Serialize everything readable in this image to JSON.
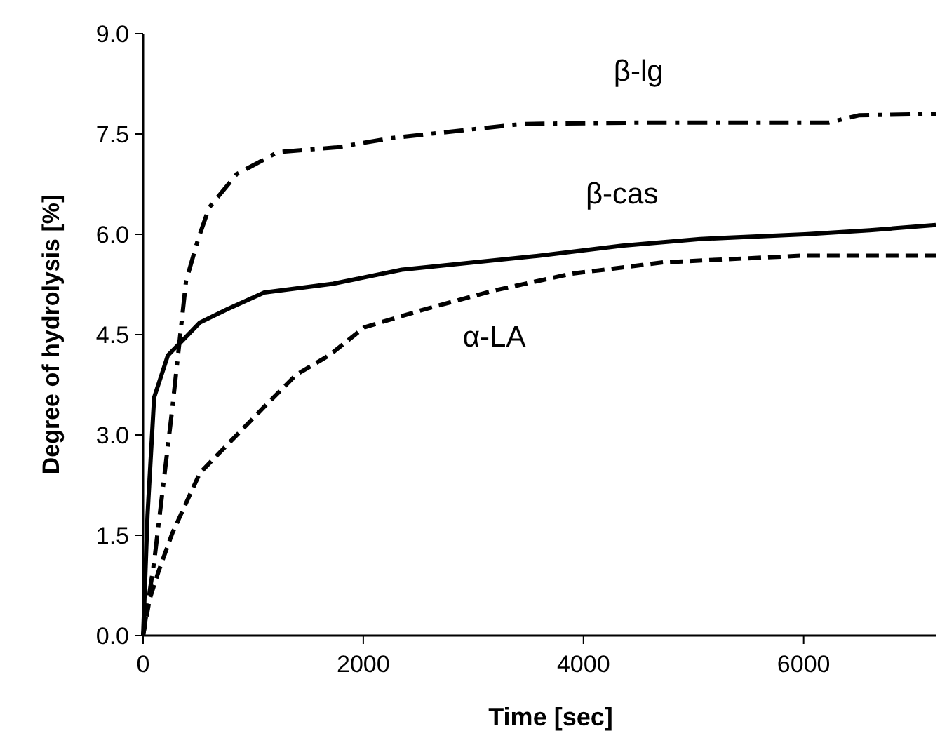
{
  "chart_data": {
    "type": "line",
    "xlabel": "Time [sec]",
    "ylabel": "Degree of hydrolysis [%]",
    "xlim": [
      0,
      7200
    ],
    "xticks": [
      0,
      2000,
      4000,
      6000
    ],
    "ylim": [
      0,
      9
    ],
    "yticks": [
      {
        "value": 0,
        "label": "0.0"
      },
      {
        "value": 1.5,
        "label": "1.5"
      },
      {
        "value": 3,
        "label": "3.0"
      },
      {
        "value": 4.5,
        "label": "4.5"
      },
      {
        "value": 6,
        "label": "6.0"
      },
      {
        "value": 7.5,
        "label": "7.5"
      },
      {
        "value": 9,
        "label": "9.0"
      }
    ],
    "grid": false,
    "legend": false,
    "marker": "none",
    "series": [
      {
        "name": "β-lg",
        "color": "#000000",
        "line_style": "dashdot",
        "x": [
          0,
          100,
          262,
          390,
          500,
          600,
          850,
          1225,
          1760,
          2260,
          3440,
          4500,
          5500,
          6225,
          6500,
          7200
        ],
        "values": [
          0,
          1.1,
          3.35,
          5.3,
          5.93,
          6.4,
          6.9,
          7.23,
          7.3,
          7.44,
          7.65,
          7.67,
          7.67,
          7.67,
          7.78,
          7.8
        ]
      },
      {
        "name": "β-cas",
        "color": "#000000",
        "line_style": "solid",
        "x": [
          0,
          40,
          100,
          225,
          350,
          515,
          765,
          1100,
          1725,
          2350,
          3600,
          4350,
          5060,
          6010,
          6600,
          7200
        ],
        "values": [
          0,
          1.8,
          3.56,
          4.19,
          4.4,
          4.68,
          4.88,
          5.13,
          5.26,
          5.47,
          5.68,
          5.83,
          5.93,
          6.0,
          6.06,
          6.14
        ]
      },
      {
        "name": "α-LA",
        "color": "#000000",
        "line_style": "dashed",
        "x": [
          0,
          60,
          140,
          265,
          515,
          810,
          1100,
          1390,
          1690,
          2010,
          2560,
          3190,
          3890,
          4725,
          5975,
          7200
        ],
        "values": [
          0,
          0.55,
          0.96,
          1.53,
          2.43,
          2.93,
          3.42,
          3.9,
          4.19,
          4.61,
          4.88,
          5.16,
          5.41,
          5.58,
          5.68,
          5.68
        ]
      }
    ]
  }
}
